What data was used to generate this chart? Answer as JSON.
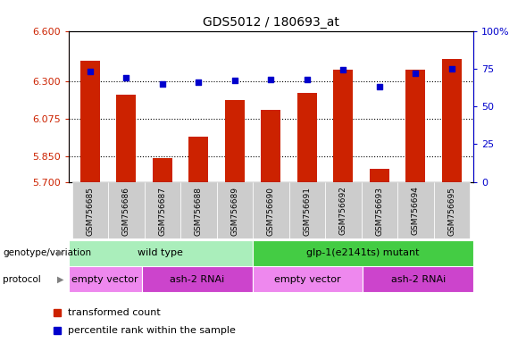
{
  "title": "GDS5012 / 180693_at",
  "samples": [
    "GSM756685",
    "GSM756686",
    "GSM756687",
    "GSM756688",
    "GSM756689",
    "GSM756690",
    "GSM756691",
    "GSM756692",
    "GSM756693",
    "GSM756694",
    "GSM756695"
  ],
  "transformed_count": [
    6.42,
    6.22,
    5.84,
    5.97,
    6.19,
    6.13,
    6.23,
    6.37,
    5.78,
    6.37,
    6.43
  ],
  "percentile_rank": [
    73,
    69,
    65,
    66,
    67,
    68,
    68,
    74,
    63,
    72,
    75
  ],
  "ylim_left": [
    5.7,
    6.6
  ],
  "ylim_right": [
    0,
    100
  ],
  "yticks_left": [
    5.7,
    5.85,
    6.075,
    6.3,
    6.6
  ],
  "yticks_right": [
    0,
    25,
    50,
    75,
    100
  ],
  "hlines": [
    5.85,
    6.075,
    6.3
  ],
  "bar_color": "#cc2200",
  "dot_color": "#0000cc",
  "bar_bottom": 5.7,
  "genotype_groups": [
    {
      "label": "wild type",
      "start": 0,
      "end": 5,
      "color": "#aaeebb"
    },
    {
      "label": "glp-1(e2141ts) mutant",
      "start": 5,
      "end": 11,
      "color": "#44cc44"
    }
  ],
  "protocol_groups": [
    {
      "label": "empty vector",
      "start": 0,
      "end": 2,
      "color": "#ee88ee"
    },
    {
      "label": "ash-2 RNAi",
      "start": 2,
      "end": 5,
      "color": "#cc44cc"
    },
    {
      "label": "empty vector",
      "start": 5,
      "end": 8,
      "color": "#ee88ee"
    },
    {
      "label": "ash-2 RNAi",
      "start": 8,
      "end": 11,
      "color": "#cc44cc"
    }
  ],
  "legend_items": [
    {
      "label": "transformed count",
      "color": "#cc2200"
    },
    {
      "label": "percentile rank within the sample",
      "color": "#0000cc"
    }
  ],
  "background_color": "#ffffff",
  "axis_color_left": "#cc2200",
  "axis_color_right": "#0000cc",
  "xtick_bg": "#cccccc"
}
